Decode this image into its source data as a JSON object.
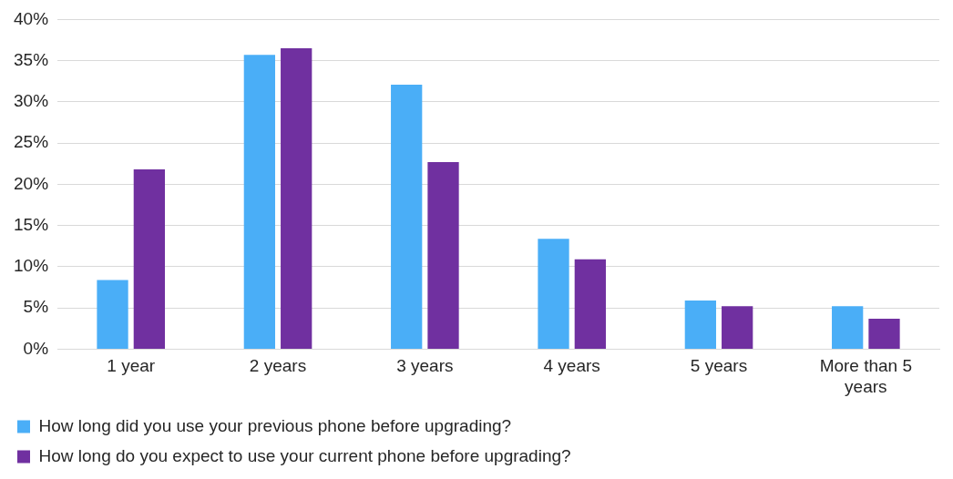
{
  "chart_data": {
    "type": "bar",
    "categories": [
      "1 year",
      "2 years",
      "3 years",
      "4 years",
      "5 years",
      "More than 5 years"
    ],
    "series": [
      {
        "name": "How long did you use your previous phone before upgrading?",
        "color": "#4aaef7",
        "values": [
          8.4,
          35.7,
          32.1,
          13.4,
          5.9,
          5.2
        ]
      },
      {
        "name": "How long do you expect to use your current phone before upgrading?",
        "color": "#7030a0",
        "values": [
          21.8,
          36.5,
          22.7,
          10.9,
          5.2,
          3.7
        ]
      }
    ],
    "ylim": [
      0,
      40
    ],
    "yticks": [
      {
        "value": 0,
        "label": "0%"
      },
      {
        "value": 5,
        "label": "5%"
      },
      {
        "value": 10,
        "label": "10%"
      },
      {
        "value": 15,
        "label": "15%"
      },
      {
        "value": 20,
        "label": "20%"
      },
      {
        "value": 25,
        "label": "25%"
      },
      {
        "value": 30,
        "label": "30%"
      },
      {
        "value": 35,
        "label": "35%"
      },
      {
        "value": 40,
        "label": "40%"
      }
    ],
    "grid": "y",
    "legend": "bottom"
  }
}
